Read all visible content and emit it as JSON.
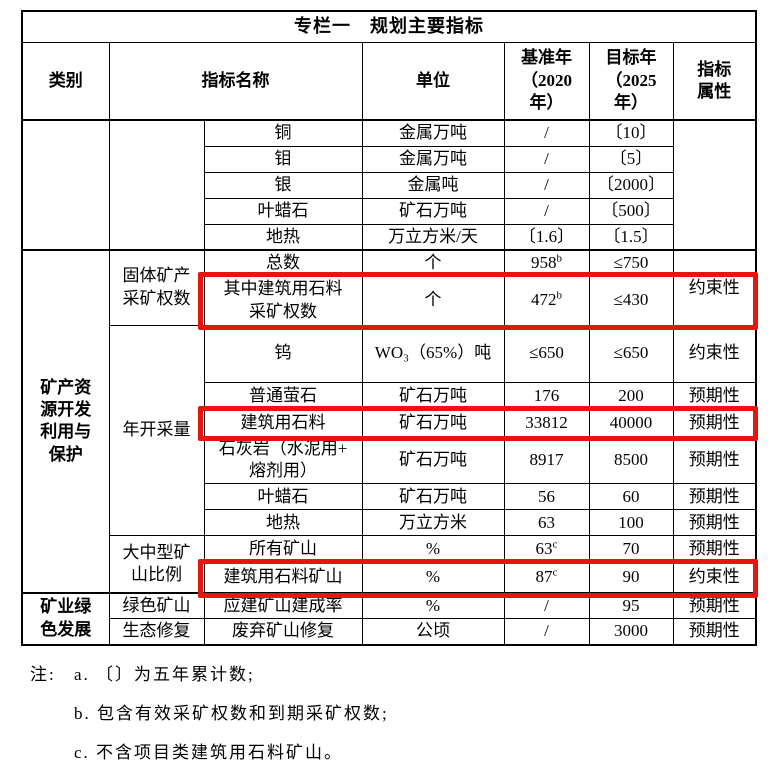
{
  "table": {
    "title": "专栏一　规划主要指标",
    "columns": {
      "category": "类别",
      "indicator_name": "指标名称",
      "unit": "单位",
      "base_year": "基准年\n（2020\n年）",
      "target_year": "目标年\n（2025\n年）",
      "attribute": "指标\n属性"
    },
    "categories": {
      "mineral_development": "矿产资\n源开发\n利用与\n保护",
      "green_mining": "矿业绿\n色发展"
    },
    "subcategories": {
      "solid_mineral_rights": "固体矿产\n采矿权数",
      "annual_extraction": "年开采量",
      "large_medium_mine_ratio": "大中型矿\n山比例",
      "green_mine": "绿色矿山",
      "eco_restoration": "生态修复"
    },
    "rows": [
      {
        "name": "铜",
        "unit": "金属万吨",
        "base": "/",
        "target": "〔10〕",
        "attr": ""
      },
      {
        "name": "钼",
        "unit": "金属万吨",
        "base": "/",
        "target": "〔5〕"
      },
      {
        "name": "银",
        "unit": "金属吨",
        "base": "/",
        "target": "〔2000〕"
      },
      {
        "name": "叶蜡石",
        "unit": "矿石万吨",
        "base": "/",
        "target": "〔500〕"
      },
      {
        "name": "地热",
        "unit": "万立方米/天",
        "base": "〔1.6〕",
        "target": "〔1.5〕"
      },
      {
        "name": "总数",
        "unit": "个",
        "base": "958",
        "base_sup": "b",
        "target": "≤750",
        "attr": "约束性"
      },
      {
        "name": "其中建筑用石料\n采矿权数",
        "unit": "个",
        "base": "472",
        "base_sup": "b",
        "target": "≤430",
        "highlighted": true
      },
      {
        "name": "钨",
        "unit": "WO₃（65%）吨",
        "base": "≤650",
        "target": "≤650",
        "attr": "约束性"
      },
      {
        "name": "普通萤石",
        "unit": "矿石万吨",
        "base": "176",
        "target": "200",
        "attr": "预期性"
      },
      {
        "name": "建筑用石料",
        "unit": "矿石万吨",
        "base": "33812",
        "target": "40000",
        "attr": "预期性",
        "highlighted": true
      },
      {
        "name": "石灰岩（水泥用+\n熔剂用）",
        "unit": "矿石万吨",
        "base": "8917",
        "target": "8500",
        "attr": "预期性"
      },
      {
        "name": "叶蜡石",
        "unit": "矿石万吨",
        "base": "56",
        "target": "60",
        "attr": "预期性"
      },
      {
        "name": "地热",
        "unit": "万立方米",
        "base": "63",
        "target": "100",
        "attr": "预期性"
      },
      {
        "name": "所有矿山",
        "unit": "%",
        "base": "63",
        "base_sup": "c",
        "target": "70",
        "attr": "预期性"
      },
      {
        "name": "建筑用石料矿山",
        "unit": "%",
        "base": "87",
        "base_sup": "c",
        "target": "90",
        "attr": "约束性",
        "highlighted": true
      },
      {
        "name": "应建矿山建成率",
        "unit": "%",
        "base": "/",
        "target": "95",
        "attr": "预期性"
      },
      {
        "name": "废弃矿山修复",
        "unit": "公顷",
        "base": "/",
        "target": "3000",
        "attr": "预期性"
      }
    ],
    "highlight_color": "#e8150f"
  },
  "notes": {
    "label": "注:",
    "items": [
      "a. 〔〕为五年累计数;",
      "b. 包含有效采矿权数和到期采矿权数;",
      "c. 不含项目类建筑用石料矿山。"
    ]
  }
}
